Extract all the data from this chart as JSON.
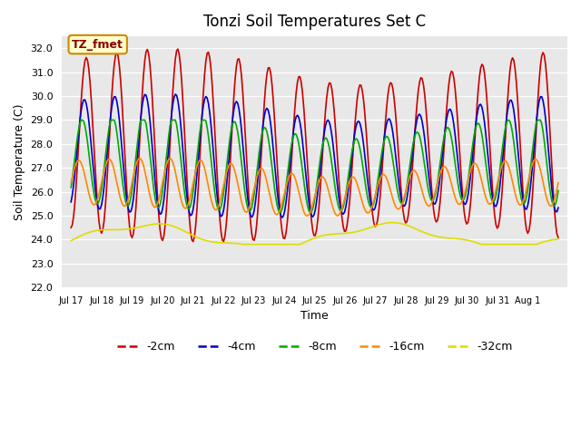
{
  "title": "Tonzi Soil Temperatures Set C",
  "xlabel": "Time",
  "ylabel": "Soil Temperature (C)",
  "ylim": [
    22.0,
    32.5
  ],
  "yticks": [
    22.0,
    23.0,
    24.0,
    25.0,
    26.0,
    27.0,
    28.0,
    29.0,
    30.0,
    31.0,
    32.0
  ],
  "plot_bg_color": "#e8e8e8",
  "colors": {
    "-2cm": "#cc0000",
    "-4cm": "#0000cc",
    "-8cm": "#00aa00",
    "-16cm": "#ff8800",
    "-32cm": "#dddd00"
  },
  "annotation_text": "TZ_fmet",
  "annotation_bg": "#ffffcc",
  "annotation_border": "#cc8800",
  "tick_labels": [
    "Jul 17",
    "Jul 18",
    "Jul 19",
    "Jul 20",
    "Jul 21",
    "Jul 22",
    "Jul 23",
    "Jul 24",
    "Jul 25",
    "Jul 26",
    "Jul 27",
    "Jul 28",
    "Jul 29",
    "Jul 30",
    "Jul 31",
    "Aug 1"
  ],
  "n_points": 384
}
